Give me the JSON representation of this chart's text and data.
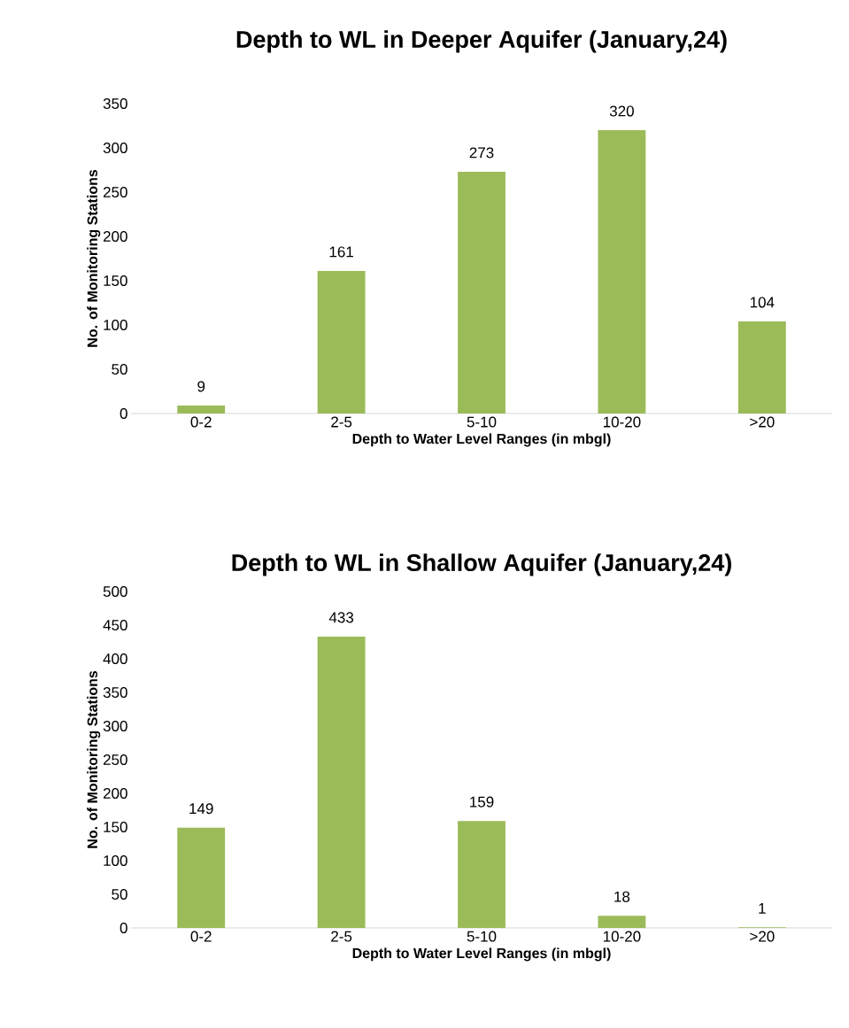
{
  "chart_data": [
    {
      "type": "bar",
      "title": "Depth to WL in Deeper Aquifer (January,24)",
      "xlabel": "Depth to Water Level Ranges (in mbgl)",
      "ylabel": "No. of Monitoring Stations",
      "categories": [
        "0-2",
        "2-5",
        "5-10",
        "10-20",
        ">20"
      ],
      "values": [
        9,
        161,
        273,
        320,
        104
      ],
      "color": "#9bbb59",
      "ylim": [
        0,
        350
      ],
      "yticks": [
        0,
        50,
        100,
        150,
        200,
        250,
        300,
        350
      ],
      "data_labels": true
    },
    {
      "type": "bar",
      "title": "Depth to WL in Shallow Aquifer (January,24)",
      "xlabel": "Depth to Water Level Ranges (in mbgl)",
      "ylabel": "No. of Monitoring Stations",
      "categories": [
        "0-2",
        "2-5",
        "5-10",
        "10-20",
        ">20"
      ],
      "values": [
        149,
        433,
        159,
        18,
        1
      ],
      "color": "#9bbb59",
      "ylim": [
        0,
        500
      ],
      "yticks": [
        0,
        50,
        100,
        150,
        200,
        250,
        300,
        350,
        400,
        450,
        500
      ],
      "data_labels": true
    }
  ]
}
